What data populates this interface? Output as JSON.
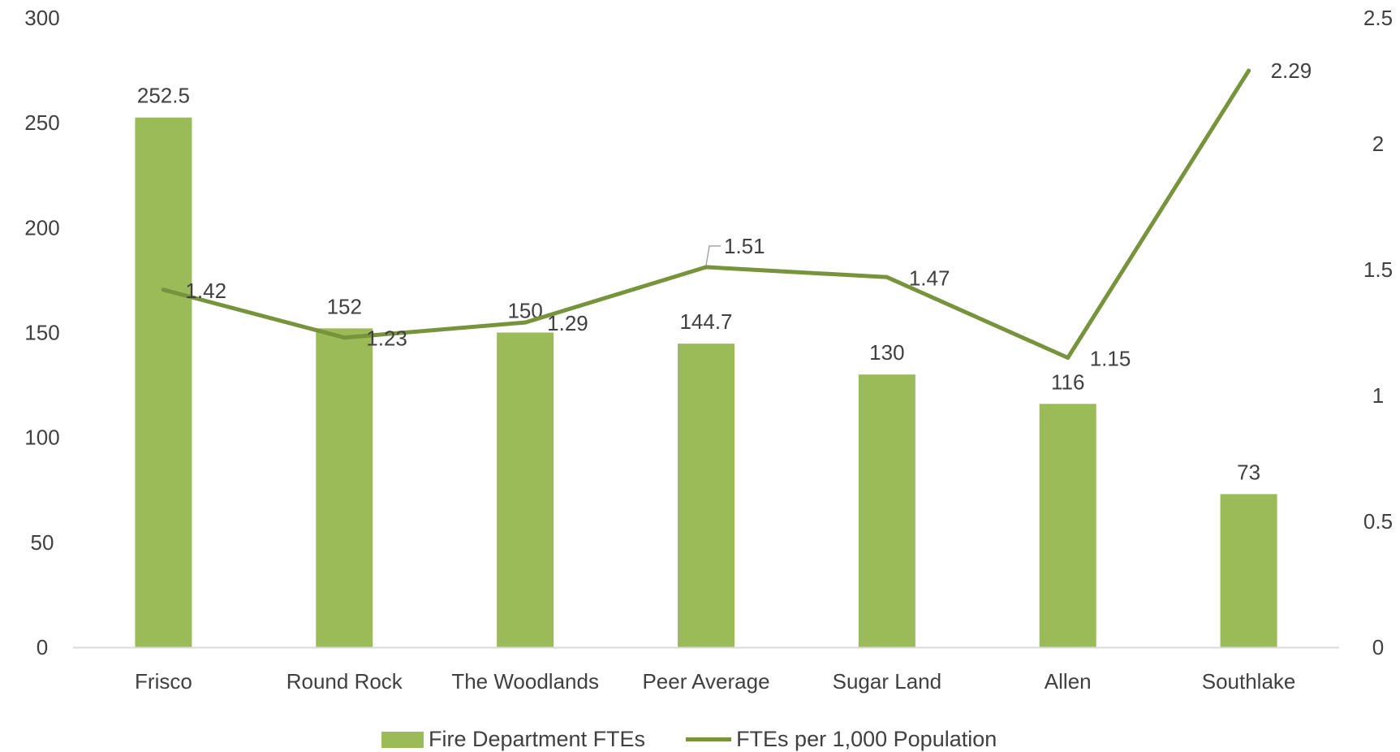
{
  "chart_data": {
    "type": "bar",
    "categories": [
      "Frisco",
      "Round Rock",
      "The Woodlands",
      "Peer Average",
      "Sugar Land",
      "Allen",
      "Southlake"
    ],
    "series": [
      {
        "name": "Fire Department FTEs",
        "type": "bar",
        "axis": "left",
        "values": [
          252.5,
          152,
          150,
          144.7,
          130,
          116,
          73
        ],
        "labels": [
          "252.5",
          "152",
          "150",
          "144.7",
          "130",
          "116",
          "73"
        ],
        "color": "#9BBB59"
      },
      {
        "name": "FTEs per 1,000 Population",
        "type": "line",
        "axis": "right",
        "values": [
          1.42,
          1.23,
          1.29,
          1.51,
          1.47,
          1.15,
          2.29
        ],
        "labels": [
          "1.42",
          "1.23",
          "1.29",
          "1.51",
          "1.47",
          "1.15",
          "2.29"
        ],
        "color": "#77933C"
      }
    ],
    "y_left": {
      "min": 0,
      "max": 300,
      "ticks": [
        "0",
        "50",
        "100",
        "150",
        "200",
        "250",
        "300"
      ]
    },
    "y_right": {
      "min": 0,
      "max": 2.5,
      "ticks": [
        "0",
        "0.5",
        "1",
        "1.5",
        "2",
        "2.5"
      ]
    },
    "title": "",
    "xlabel": "",
    "ylabel": "",
    "grid": false,
    "legend_position": "bottom"
  }
}
